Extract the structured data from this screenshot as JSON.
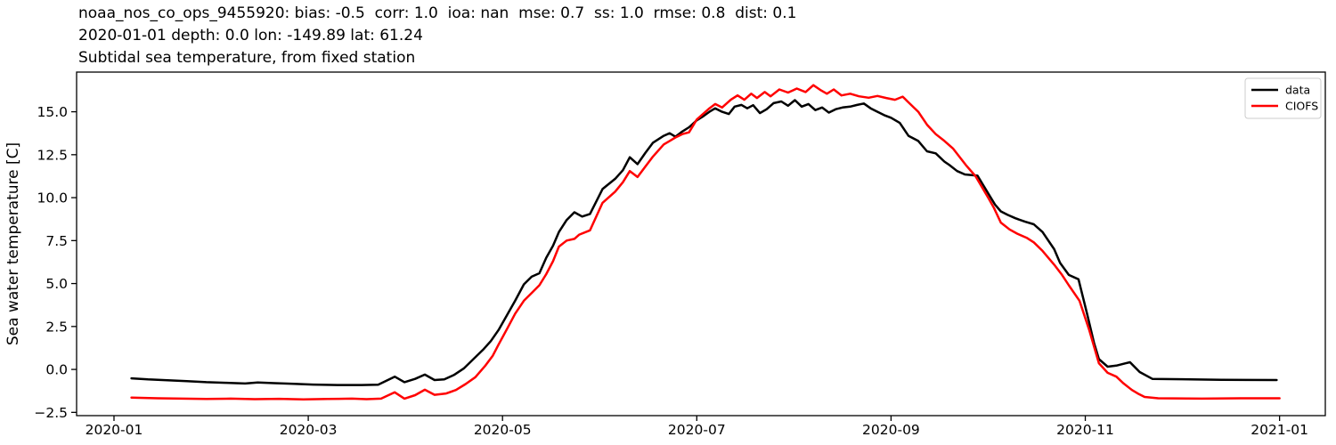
{
  "chart_data": {
    "type": "line",
    "title_lines": [
      "noaa_nos_co_ops_9455920: bias: -0.5  corr: 1.0  ioa: nan  mse: 0.7  ss: 1.0  rmse: 0.8  dist: 0.1",
      "2020-01-01 depth: 0.0 lon: -149.89 lat: 61.24",
      "Subtidal sea temperature, from fixed station"
    ],
    "ylabel": "Sea water temperature [C]",
    "xlabel": "",
    "x_unit": "months since 2020-01-01",
    "x_range_months": [
      -0.385,
      12.471
    ],
    "y_range": [
      -2.69,
      17.31
    ],
    "grid": false,
    "x_ticks": [
      {
        "m": 0,
        "label": "2020-01"
      },
      {
        "m": 2,
        "label": "2020-03"
      },
      {
        "m": 4,
        "label": "2020-05"
      },
      {
        "m": 6,
        "label": "2020-07"
      },
      {
        "m": 8,
        "label": "2020-09"
      },
      {
        "m": 10,
        "label": "2020-11"
      },
      {
        "m": 12,
        "label": "2021-01"
      }
    ],
    "y_ticks": [
      {
        "v": -2.5,
        "label": "−2.5"
      },
      {
        "v": 0.0,
        "label": "0.0"
      },
      {
        "v": 2.5,
        "label": "2.5"
      },
      {
        "v": 5.0,
        "label": "5.0"
      },
      {
        "v": 7.5,
        "label": "7.5"
      },
      {
        "v": 10.0,
        "label": "10.0"
      },
      {
        "v": 12.5,
        "label": "12.5"
      },
      {
        "v": 15.0,
        "label": "15.0"
      }
    ],
    "legend": {
      "position": "upper right",
      "entries": [
        "data",
        "CIOFS"
      ]
    },
    "series": [
      {
        "name": "data",
        "color": "#000000",
        "points": [
          [
            0.18,
            -0.52
          ],
          [
            0.35,
            -0.58
          ],
          [
            0.55,
            -0.63
          ],
          [
            0.75,
            -0.68
          ],
          [
            0.95,
            -0.74
          ],
          [
            1.15,
            -0.78
          ],
          [
            1.35,
            -0.82
          ],
          [
            1.48,
            -0.76
          ],
          [
            1.65,
            -0.8
          ],
          [
            1.85,
            -0.84
          ],
          [
            2.05,
            -0.88
          ],
          [
            2.3,
            -0.91
          ],
          [
            2.55,
            -0.91
          ],
          [
            2.72,
            -0.89
          ],
          [
            2.89,
            -0.42
          ],
          [
            2.99,
            -0.74
          ],
          [
            3.1,
            -0.55
          ],
          [
            3.2,
            -0.3
          ],
          [
            3.3,
            -0.62
          ],
          [
            3.4,
            -0.58
          ],
          [
            3.5,
            -0.32
          ],
          [
            3.6,
            0.05
          ],
          [
            3.7,
            0.6
          ],
          [
            3.8,
            1.15
          ],
          [
            3.88,
            1.65
          ],
          [
            3.96,
            2.3
          ],
          [
            4.05,
            3.2
          ],
          [
            4.13,
            4.0
          ],
          [
            4.22,
            4.95
          ],
          [
            4.3,
            5.4
          ],
          [
            4.38,
            5.6
          ],
          [
            4.45,
            6.5
          ],
          [
            4.52,
            7.2
          ],
          [
            4.58,
            8.0
          ],
          [
            4.66,
            8.7
          ],
          [
            4.74,
            9.15
          ],
          [
            4.82,
            8.9
          ],
          [
            4.9,
            9.05
          ],
          [
            5.03,
            10.5
          ],
          [
            5.16,
            11.1
          ],
          [
            5.24,
            11.6
          ],
          [
            5.31,
            12.35
          ],
          [
            5.39,
            11.95
          ],
          [
            5.47,
            12.6
          ],
          [
            5.55,
            13.2
          ],
          [
            5.66,
            13.6
          ],
          [
            5.72,
            13.75
          ],
          [
            5.78,
            13.55
          ],
          [
            5.85,
            13.85
          ],
          [
            5.92,
            14.1
          ],
          [
            6.0,
            14.5
          ],
          [
            6.07,
            14.75
          ],
          [
            6.13,
            15.0
          ],
          [
            6.19,
            15.2
          ],
          [
            6.26,
            15.0
          ],
          [
            6.33,
            14.87
          ],
          [
            6.39,
            15.3
          ],
          [
            6.46,
            15.4
          ],
          [
            6.52,
            15.2
          ],
          [
            6.58,
            15.38
          ],
          [
            6.65,
            14.92
          ],
          [
            6.72,
            15.15
          ],
          [
            6.79,
            15.5
          ],
          [
            6.87,
            15.6
          ],
          [
            6.94,
            15.35
          ],
          [
            7.01,
            15.68
          ],
          [
            7.08,
            15.3
          ],
          [
            7.15,
            15.45
          ],
          [
            7.22,
            15.1
          ],
          [
            7.29,
            15.25
          ],
          [
            7.36,
            14.95
          ],
          [
            7.43,
            15.15
          ],
          [
            7.5,
            15.25
          ],
          [
            7.58,
            15.3
          ],
          [
            7.65,
            15.4
          ],
          [
            7.72,
            15.48
          ],
          [
            7.79,
            15.2
          ],
          [
            7.86,
            15.0
          ],
          [
            7.93,
            14.8
          ],
          [
            8.0,
            14.65
          ],
          [
            8.09,
            14.35
          ],
          [
            8.18,
            13.6
          ],
          [
            8.28,
            13.3
          ],
          [
            8.37,
            12.7
          ],
          [
            8.46,
            12.58
          ],
          [
            8.55,
            12.1
          ],
          [
            8.6,
            11.9
          ],
          [
            8.68,
            11.55
          ],
          [
            8.76,
            11.35
          ],
          [
            8.89,
            11.28
          ],
          [
            9.0,
            10.25
          ],
          [
            9.07,
            9.6
          ],
          [
            9.13,
            9.2
          ],
          [
            9.2,
            9.0
          ],
          [
            9.28,
            8.8
          ],
          [
            9.38,
            8.6
          ],
          [
            9.47,
            8.45
          ],
          [
            9.56,
            8.0
          ],
          [
            9.68,
            7.0
          ],
          [
            9.74,
            6.2
          ],
          [
            9.83,
            5.5
          ],
          [
            9.93,
            5.25
          ],
          [
            10.02,
            3.2
          ],
          [
            10.09,
            1.55
          ],
          [
            10.14,
            0.6
          ],
          [
            10.23,
            0.16
          ],
          [
            10.32,
            0.22
          ],
          [
            10.41,
            0.35
          ],
          [
            10.46,
            0.42
          ],
          [
            10.56,
            -0.15
          ],
          [
            10.69,
            -0.55
          ],
          [
            11.0,
            -0.57
          ],
          [
            11.4,
            -0.6
          ],
          [
            11.97,
            -0.62
          ]
        ]
      },
      {
        "name": "CIOFS",
        "color": "#ff0000",
        "points": [
          [
            0.18,
            -1.64
          ],
          [
            0.45,
            -1.68
          ],
          [
            0.7,
            -1.7
          ],
          [
            0.95,
            -1.72
          ],
          [
            1.2,
            -1.7
          ],
          [
            1.45,
            -1.73
          ],
          [
            1.7,
            -1.71
          ],
          [
            1.95,
            -1.74
          ],
          [
            2.2,
            -1.72
          ],
          [
            2.45,
            -1.7
          ],
          [
            2.6,
            -1.73
          ],
          [
            2.75,
            -1.7
          ],
          [
            2.89,
            -1.33
          ],
          [
            2.99,
            -1.7
          ],
          [
            3.1,
            -1.5
          ],
          [
            3.2,
            -1.18
          ],
          [
            3.3,
            -1.48
          ],
          [
            3.42,
            -1.4
          ],
          [
            3.52,
            -1.2
          ],
          [
            3.62,
            -0.85
          ],
          [
            3.72,
            -0.45
          ],
          [
            3.82,
            0.2
          ],
          [
            3.9,
            0.8
          ],
          [
            3.96,
            1.45
          ],
          [
            4.05,
            2.4
          ],
          [
            4.13,
            3.25
          ],
          [
            4.22,
            4.0
          ],
          [
            4.3,
            4.45
          ],
          [
            4.38,
            4.9
          ],
          [
            4.45,
            5.55
          ],
          [
            4.52,
            6.3
          ],
          [
            4.58,
            7.15
          ],
          [
            4.66,
            7.5
          ],
          [
            4.74,
            7.6
          ],
          [
            4.79,
            7.85
          ],
          [
            4.9,
            8.1
          ],
          [
            5.03,
            9.7
          ],
          [
            5.16,
            10.35
          ],
          [
            5.24,
            10.9
          ],
          [
            5.31,
            11.55
          ],
          [
            5.39,
            11.2
          ],
          [
            5.47,
            11.8
          ],
          [
            5.55,
            12.4
          ],
          [
            5.66,
            13.1
          ],
          [
            5.72,
            13.3
          ],
          [
            5.78,
            13.5
          ],
          [
            5.85,
            13.7
          ],
          [
            5.92,
            13.8
          ],
          [
            6.0,
            14.55
          ],
          [
            6.07,
            14.9
          ],
          [
            6.13,
            15.2
          ],
          [
            6.19,
            15.45
          ],
          [
            6.26,
            15.25
          ],
          [
            6.35,
            15.7
          ],
          [
            6.42,
            15.95
          ],
          [
            6.49,
            15.7
          ],
          [
            6.56,
            16.05
          ],
          [
            6.62,
            15.8
          ],
          [
            6.7,
            16.15
          ],
          [
            6.76,
            15.9
          ],
          [
            6.85,
            16.3
          ],
          [
            6.94,
            16.12
          ],
          [
            7.03,
            16.35
          ],
          [
            7.12,
            16.15
          ],
          [
            7.2,
            16.55
          ],
          [
            7.27,
            16.28
          ],
          [
            7.34,
            16.05
          ],
          [
            7.41,
            16.3
          ],
          [
            7.49,
            15.95
          ],
          [
            7.58,
            16.05
          ],
          [
            7.67,
            15.9
          ],
          [
            7.77,
            15.82
          ],
          [
            7.86,
            15.92
          ],
          [
            7.95,
            15.8
          ],
          [
            8.04,
            15.7
          ],
          [
            8.12,
            15.88
          ],
          [
            8.18,
            15.55
          ],
          [
            8.28,
            15.0
          ],
          [
            8.37,
            14.25
          ],
          [
            8.46,
            13.7
          ],
          [
            8.55,
            13.3
          ],
          [
            8.64,
            12.85
          ],
          [
            8.77,
            11.9
          ],
          [
            8.87,
            11.25
          ],
          [
            9.0,
            10.0
          ],
          [
            9.06,
            9.4
          ],
          [
            9.13,
            8.55
          ],
          [
            9.22,
            8.15
          ],
          [
            9.3,
            7.9
          ],
          [
            9.4,
            7.65
          ],
          [
            9.47,
            7.4
          ],
          [
            9.56,
            6.9
          ],
          [
            9.68,
            6.1
          ],
          [
            9.76,
            5.5
          ],
          [
            9.83,
            4.9
          ],
          [
            9.94,
            4.0
          ],
          [
            10.04,
            2.3
          ],
          [
            10.14,
            0.36
          ],
          [
            10.23,
            -0.2
          ],
          [
            10.32,
            -0.42
          ],
          [
            10.39,
            -0.8
          ],
          [
            10.48,
            -1.2
          ],
          [
            10.54,
            -1.4
          ],
          [
            10.61,
            -1.6
          ],
          [
            10.75,
            -1.68
          ],
          [
            11.2,
            -1.7
          ],
          [
            11.6,
            -1.68
          ],
          [
            12.0,
            -1.68
          ]
        ]
      }
    ]
  }
}
